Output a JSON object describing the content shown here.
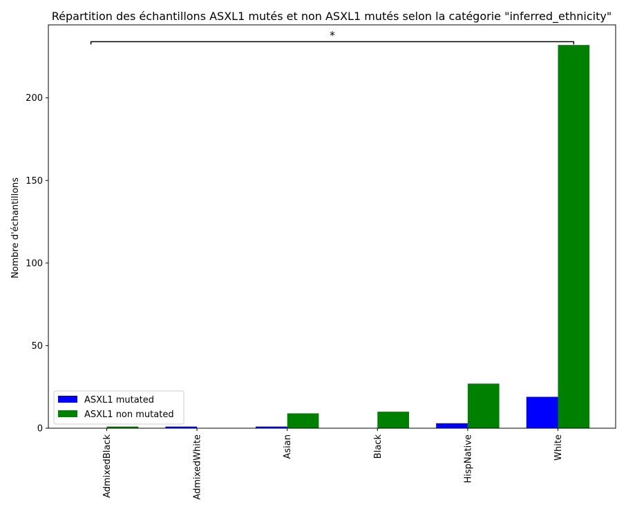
{
  "chart_data": {
    "type": "bar",
    "title": "Répartition des échantillons ASXL1 mutés et non ASXL1 mutés selon la catégorie \"inferred_ethnicity\"",
    "xlabel": "",
    "ylabel": "Nombre d'échantillons",
    "categories": [
      "AdmixedBlack",
      "AdmixedWhite",
      "Asian",
      "Black",
      "HispNative",
      "White"
    ],
    "series": [
      {
        "name": "ASXL1 mutated",
        "color": "#0000ff",
        "values": [
          0,
          1,
          1,
          0,
          3,
          19
        ]
      },
      {
        "name": "ASXL1 non mutated",
        "color": "#008000",
        "values": [
          1,
          0,
          9,
          10,
          27,
          232
        ]
      }
    ],
    "ylim": [
      0,
      232
    ],
    "yticks": [
      "0",
      "50",
      "100",
      "150",
      "200"
    ],
    "grid": false,
    "legend_position": "lower-left",
    "annotation": {
      "text": "*",
      "from_category": "AdmixedBlack",
      "to_category": "White",
      "y": 234
    }
  }
}
